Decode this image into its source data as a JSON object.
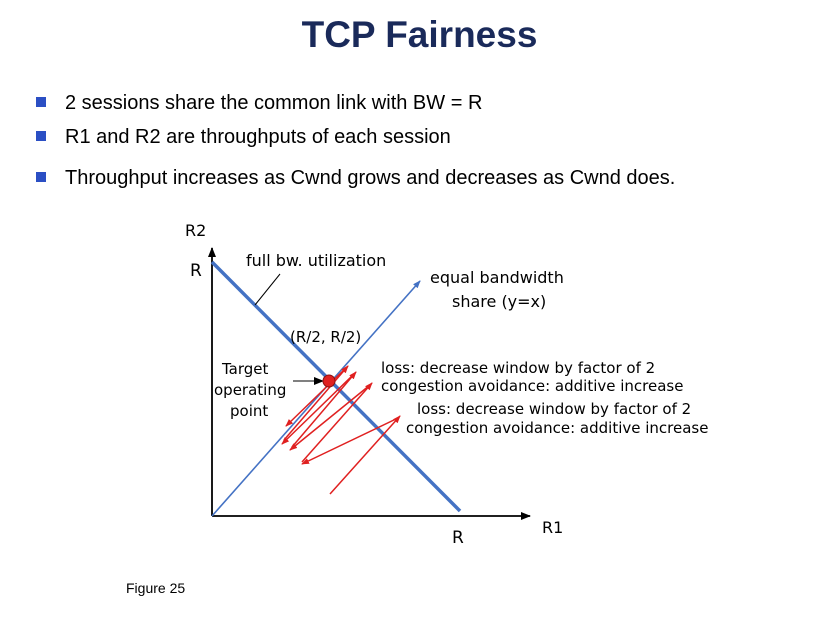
{
  "title": "TCP Fairness",
  "bullets": [
    "2 sessions share the common link with BW = R",
    "R1 and R2 are throughputs of each session",
    "Throughput increases as Cwnd grows and decreases as Cwnd does."
  ],
  "diagram": {
    "axis_y_label": "R2",
    "axis_x_label": "R1",
    "y_R_label": "R",
    "x_R_label": "R",
    "full_bw_label": "full bw. utilization",
    "equal_share_line1": "equal bandwidth",
    "equal_share_line2": "share (y=x)",
    "point_label": "(R/2, R/2)",
    "target_line1": "Target",
    "target_line2": "operating",
    "target_line3": "point",
    "annot1_line1": "loss: decrease window by factor of 2",
    "annot1_line2": "congestion avoidance: additive increase",
    "annot2_line1": "loss: decrease window by factor of 2",
    "annot2_line2": "congestion avoidance: additive increase",
    "colors": {
      "line": "#4472c4",
      "arrow": "#e02020",
      "dot": "#e02020",
      "axis": "#000000"
    }
  },
  "caption": "Figure 25"
}
